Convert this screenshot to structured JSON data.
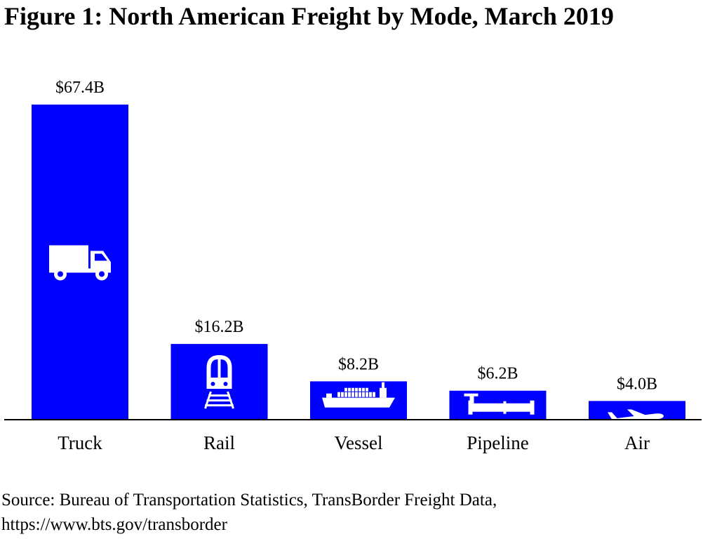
{
  "chart_data": {
    "type": "bar",
    "title": "Figure 1: North American Freight by Mode, March 2019",
    "categories": [
      "Truck",
      "Rail",
      "Vessel",
      "Pipeline",
      "Air"
    ],
    "values": [
      67.4,
      16.2,
      8.2,
      6.2,
      4.0
    ],
    "value_labels": [
      "$67.4B",
      "$16.2B",
      "$8.2B",
      "$6.2B",
      "$4.0B"
    ],
    "icons": [
      "truck-icon",
      "train-icon",
      "ship-icon",
      "pipeline-icon",
      "airplane-icon"
    ],
    "xlabel": "",
    "ylabel": "",
    "ylim": [
      0,
      67.4
    ],
    "grid": false,
    "bar_color": "#0000FF",
    "icon_color": "#FFFFFF"
  },
  "source": {
    "line1": "Source: Bureau of Transportation Statistics, TransBorder Freight Data,",
    "line2": "https://www.bts.gov/transborder"
  }
}
